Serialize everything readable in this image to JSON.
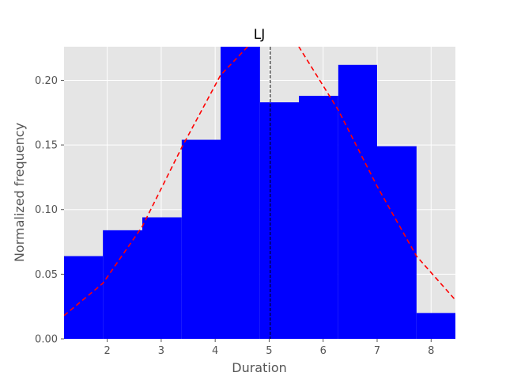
{
  "chart_data": {
    "type": "bar",
    "title": "LJ",
    "xlabel": "Duration",
    "ylabel": "Normalized frequency",
    "xlim": [
      1.2,
      8.45
    ],
    "ylim": [
      0,
      0.226
    ],
    "grid": true,
    "background": "#e5e5e5",
    "bar_color": "#0000ff",
    "bins": [
      {
        "x0": 1.2,
        "x1": 1.92,
        "value": 0.064
      },
      {
        "x0": 1.92,
        "x1": 2.65,
        "value": 0.084
      },
      {
        "x0": 2.65,
        "x1": 3.38,
        "value": 0.094
      },
      {
        "x0": 3.38,
        "x1": 4.1,
        "value": 0.154
      },
      {
        "x0": 4.1,
        "x1": 4.83,
        "value": 0.226
      },
      {
        "x0": 4.83,
        "x1": 5.55,
        "value": 0.183
      },
      {
        "x0": 5.55,
        "x1": 6.28,
        "value": 0.188
      },
      {
        "x0": 6.28,
        "x1": 7.0,
        "value": 0.212
      },
      {
        "x0": 7.0,
        "x1": 7.73,
        "value": 0.149
      },
      {
        "x0": 7.73,
        "x1": 8.45,
        "value": 0.02
      }
    ],
    "density_curve": {
      "color": "#ff0000",
      "style": "dashed",
      "x": [
        1.2,
        1.92,
        2.65,
        3.38,
        4.1,
        4.83,
        5.55,
        6.28,
        7.0,
        7.73,
        8.45
      ],
      "y": [
        0.018,
        0.043,
        0.087,
        0.148,
        0.204,
        0.236,
        0.226,
        0.177,
        0.118,
        0.064,
        0.03
      ]
    },
    "mean_line": {
      "x": 5.02,
      "color": "#000000",
      "style": "dashed"
    },
    "xticks": [
      2,
      3,
      4,
      5,
      6,
      7,
      8
    ],
    "xtick_labels": [
      "2",
      "3",
      "4",
      "5",
      "6",
      "7",
      "8"
    ],
    "yticks": [
      0.0,
      0.05,
      0.1,
      0.15,
      0.2
    ],
    "ytick_labels": [
      "0.00",
      "0.05",
      "0.10",
      "0.15",
      "0.20"
    ]
  }
}
